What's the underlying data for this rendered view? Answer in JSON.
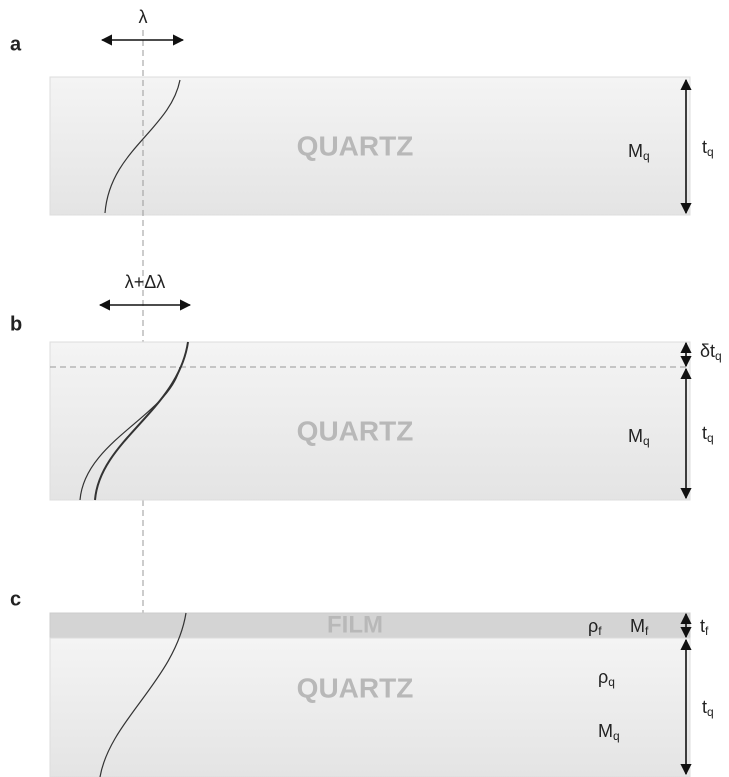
{
  "panels": [
    {
      "label": "a",
      "wavelength": "λ",
      "material": "QUARTZ",
      "mass": {
        "base": "M",
        "sub": "q"
      },
      "thickness": {
        "base": "t",
        "sub": "q"
      }
    },
    {
      "label": "b",
      "wavelength": "λ+Δλ",
      "material": "QUARTZ",
      "mass": {
        "base": "M",
        "sub": "q"
      },
      "thickness": {
        "base": "t",
        "sub": "q"
      },
      "delta_thickness": {
        "base": "δt",
        "sub": "q"
      }
    },
    {
      "label": "c",
      "material": "QUARTZ",
      "mass": {
        "base": "M",
        "sub": "q"
      },
      "thickness": {
        "base": "t",
        "sub": "q"
      },
      "density": {
        "base": "ρ",
        "sub": "q"
      },
      "film": {
        "label": "FILM",
        "density": {
          "base": "ρ",
          "sub": "f"
        },
        "mass": {
          "base": "M",
          "sub": "f"
        },
        "thickness": {
          "base": "t",
          "sub": "f"
        }
      }
    }
  ]
}
